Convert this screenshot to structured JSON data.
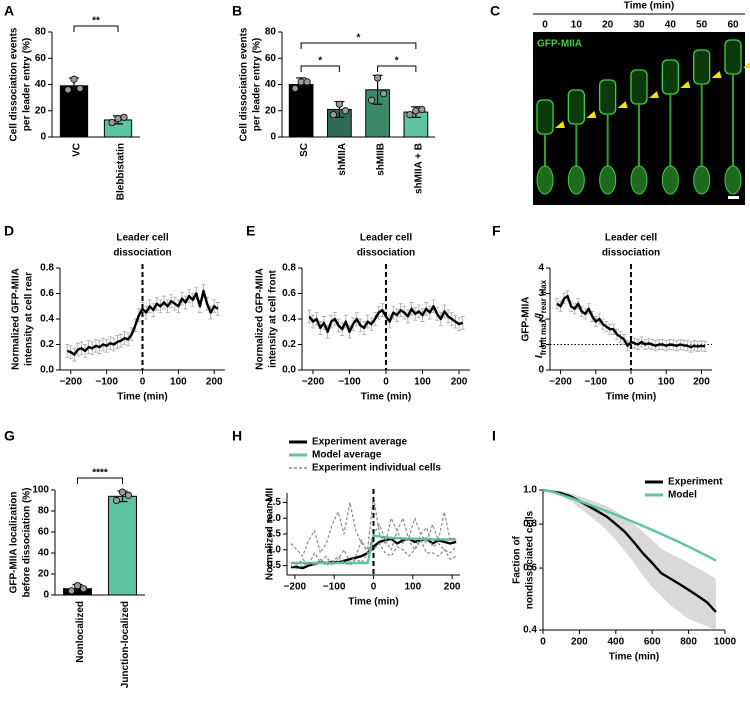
{
  "chart_data": [
    {
      "type": "bar",
      "panel": "A",
      "y_label": [
        "Cell dissociation events",
        "per leader entry (%)"
      ],
      "categories": [
        "VC",
        "Blebbistatin"
      ],
      "values": [
        39,
        13
      ],
      "errors": [
        6,
        3
      ],
      "points": [
        [
          36,
          44,
          37
        ],
        [
          11,
          14,
          15
        ]
      ],
      "colors": [
        "#000000",
        "#5cc4a0"
      ],
      "ylim": [
        0,
        80
      ],
      "yticks": [
        0,
        20,
        40,
        60,
        80
      ],
      "significance": [
        {
          "between": [
            "VC",
            "Blebbistatin"
          ],
          "label": "**"
        }
      ]
    },
    {
      "type": "bar",
      "panel": "B",
      "y_label": [
        "Cell dissociation events",
        "per leader entry (%)"
      ],
      "categories": [
        "SC",
        "shMIIA",
        "shMIIB",
        "shMIIA + B"
      ],
      "values": [
        40,
        21,
        36,
        19
      ],
      "errors": [
        5,
        6,
        11,
        4
      ],
      "points": [
        [
          37,
          42,
          42
        ],
        [
          17,
          25,
          20
        ],
        [
          28,
          45,
          33
        ],
        [
          17,
          20,
          21
        ]
      ],
      "colors": [
        "#000000",
        "#2f6b56",
        "#3d8a6b",
        "#5cc4a0"
      ],
      "ylim": [
        0,
        80
      ],
      "yticks": [
        0,
        20,
        40,
        60,
        80
      ],
      "significance": [
        {
          "between": [
            "SC",
            "shMIIA"
          ],
          "label": "*"
        },
        {
          "between": [
            "SC",
            "shMIIA + B"
          ],
          "label": "*"
        },
        {
          "between": [
            "shMIIB",
            "shMIIA + B"
          ],
          "label": "*"
        }
      ]
    },
    {
      "type": "image",
      "panel": "C",
      "title": "Time (min)",
      "times": [
        0,
        10,
        20,
        30,
        40,
        50,
        60
      ],
      "label": "GFP-MIIA"
    },
    {
      "type": "line",
      "panel": "D",
      "annotation": [
        "Leader cell",
        "dissociation"
      ],
      "marker_x": 0,
      "y_label": [
        "Normalized GFP-MIIA",
        "intensity at cell rear"
      ],
      "x_label": "Time (min)",
      "xlim": [
        -230,
        230
      ],
      "xticks": [
        {
          "value": -200,
          "label": "−200"
        },
        {
          "value": -100,
          "label": "−100"
        },
        0,
        100,
        200
      ],
      "ylim": [
        0,
        0.8
      ],
      "yticks": [
        {
          "value": 0,
          "label": "0.0"
        },
        0.2,
        0.4,
        0.6,
        0.8
      ],
      "x": [
        -210,
        -200,
        -190,
        -180,
        -170,
        -160,
        -150,
        -140,
        -130,
        -120,
        -110,
        -100,
        -90,
        -80,
        -70,
        -60,
        -50,
        -40,
        -30,
        -20,
        -10,
        0,
        10,
        20,
        30,
        40,
        50,
        60,
        70,
        80,
        90,
        100,
        110,
        120,
        130,
        140,
        150,
        160,
        170,
        180,
        190,
        200,
        210
      ],
      "series": [
        {
          "color": "#000000",
          "error": 0.05,
          "values": [
            0.15,
            0.14,
            0.12,
            0.16,
            0.17,
            0.15,
            0.18,
            0.17,
            0.19,
            0.18,
            0.2,
            0.19,
            0.21,
            0.2,
            0.22,
            0.23,
            0.25,
            0.24,
            0.28,
            0.35,
            0.43,
            0.48,
            0.45,
            0.5,
            0.47,
            0.52,
            0.5,
            0.53,
            0.5,
            0.54,
            0.52,
            0.5,
            0.56,
            0.53,
            0.58,
            0.55,
            0.6,
            0.5,
            0.62,
            0.52,
            0.45,
            0.5,
            0.48
          ]
        }
      ]
    },
    {
      "type": "line",
      "panel": "E",
      "annotation": [
        "Leader cell",
        "dissociation"
      ],
      "marker_x": 0,
      "y_label": [
        "Normalized GFP-MIIA",
        "intensity at cell front"
      ],
      "x_label": "Time (min)",
      "xlim": [
        -230,
        230
      ],
      "xticks": [
        {
          "value": -200,
          "label": "−200"
        },
        {
          "value": -100,
          "label": "−100"
        },
        0,
        100,
        200
      ],
      "ylim": [
        0,
        0.8
      ],
      "yticks": [
        {
          "value": 0,
          "label": "0.0"
        },
        0.2,
        0.4,
        0.6,
        0.8
      ],
      "x": [
        -210,
        -200,
        -190,
        -180,
        -170,
        -160,
        -150,
        -140,
        -130,
        -120,
        -110,
        -100,
        -90,
        -80,
        -70,
        -60,
        -50,
        -40,
        -30,
        -20,
        -10,
        0,
        10,
        20,
        30,
        40,
        50,
        60,
        70,
        80,
        90,
        100,
        110,
        120,
        130,
        140,
        150,
        160,
        170,
        180,
        190,
        200,
        210
      ],
      "series": [
        {
          "color": "#000000",
          "error": 0.05,
          "values": [
            0.42,
            0.38,
            0.4,
            0.33,
            0.37,
            0.3,
            0.38,
            0.4,
            0.35,
            0.32,
            0.38,
            0.3,
            0.36,
            0.4,
            0.35,
            0.33,
            0.38,
            0.36,
            0.4,
            0.45,
            0.47,
            0.42,
            0.38,
            0.45,
            0.43,
            0.47,
            0.45,
            0.42,
            0.48,
            0.44,
            0.46,
            0.43,
            0.48,
            0.45,
            0.5,
            0.44,
            0.4,
            0.46,
            0.42,
            0.4,
            0.38,
            0.36,
            0.37
          ]
        }
      ]
    },
    {
      "type": "line",
      "panel": "F",
      "annotation": [
        "Leader cell",
        "dissociation"
      ],
      "marker_x": 0,
      "reference_y": 1,
      "y_label": [
        "GFP-MIIA"
      ],
      "y_label_2": [
        {
          "text": "I"
        },
        {
          "text": "front max",
          "sub": true
        },
        {
          "text": "/I"
        },
        {
          "text": "rear max",
          "sub": true
        }
      ],
      "x_label": "Time (min)",
      "xlim": [
        -230,
        230
      ],
      "xticks": [
        {
          "value": -200,
          "label": "−200"
        },
        {
          "value": -100,
          "label": "−100"
        },
        0,
        100,
        200
      ],
      "ylim": [
        0,
        4
      ],
      "yticks": [
        0,
        1,
        2,
        3,
        4
      ],
      "x": [
        -210,
        -200,
        -190,
        -180,
        -170,
        -160,
        -150,
        -140,
        -130,
        -120,
        -110,
        -100,
        -90,
        -80,
        -70,
        -60,
        -50,
        -40,
        -30,
        -20,
        -10,
        0,
        10,
        20,
        30,
        40,
        50,
        60,
        70,
        80,
        90,
        100,
        110,
        120,
        130,
        140,
        150,
        160,
        170,
        180,
        190,
        200,
        210
      ],
      "series": [
        {
          "color": "#000000",
          "error": 0.2,
          "values": [
            2.6,
            2.5,
            2.8,
            2.9,
            2.5,
            2.4,
            2.6,
            2.3,
            2.2,
            2.4,
            2.1,
            1.9,
            2.0,
            1.8,
            1.7,
            1.6,
            1.6,
            1.4,
            1.3,
            1.2,
            0.95,
            1.1,
            1.05,
            1.0,
            1.1,
            1.0,
            1.05,
            1.0,
            0.95,
            1.0,
            1.0,
            0.95,
            1.0,
            0.98,
            0.95,
            1.0,
            0.97,
            0.95,
            0.9,
            0.95,
            0.92,
            0.95,
            0.93
          ]
        }
      ]
    },
    {
      "type": "bar",
      "panel": "G",
      "y_label": [
        "GFP-MIIA localization",
        "before dissociation (%)"
      ],
      "categories": [
        "Nonlocalized",
        "Junction-localized"
      ],
      "values": [
        6,
        94
      ],
      "errors": [
        4,
        5
      ],
      "points": [
        [
          4,
          9,
          6
        ],
        [
          90,
          98,
          95
        ]
      ],
      "colors": [
        "#000000",
        "#5cc4a0"
      ],
      "ylim": [
        0,
        100
      ],
      "yticks": [
        0,
        20,
        40,
        60,
        80,
        100
      ],
      "significance": [
        {
          "between": [
            "Nonlocalized",
            "Junction-localized"
          ],
          "label": "****"
        }
      ]
    },
    {
      "type": "line",
      "panel": "H",
      "marker_x": 0,
      "legend": "above",
      "y_label": [
        "Normalized rear MII"
      ],
      "x_label": "Time (min)",
      "xlim": [
        -220,
        220
      ],
      "xticks": [
        {
          "value": -200,
          "label": "−200"
        },
        {
          "value": -100,
          "label": "−100"
        },
        0,
        100,
        200
      ],
      "ylim": [
        0.2,
        2.8
      ],
      "yticks": [
        0.5,
        {
          "value": 1,
          "label": "1.0"
        },
        1.5,
        {
          "value": 2,
          "label": "2.0"
        },
        2.5
      ],
      "x": [
        -210,
        -195,
        -180,
        -165,
        -150,
        -135,
        -120,
        -105,
        -90,
        -75,
        -60,
        -45,
        -30,
        -15,
        0,
        15,
        30,
        45,
        60,
        75,
        90,
        105,
        120,
        135,
        150,
        165,
        180,
        195,
        210
      ],
      "series": [
        {
          "name": "Experiment average",
          "color": "#000000",
          "values": [
            0.45,
            0.45,
            0.42,
            0.5,
            0.55,
            0.6,
            0.58,
            0.62,
            0.6,
            0.65,
            0.7,
            0.75,
            0.8,
            0.9,
            1.1,
            1.25,
            1.3,
            1.35,
            1.2,
            1.3,
            1.35,
            1.25,
            1.3,
            1.35,
            1.2,
            1.3,
            1.25,
            1.2,
            1.25
          ]
        },
        {
          "name": "Model average",
          "color": "#5cc4a0",
          "values": [
            0.58,
            0.58,
            0.58,
            0.58,
            0.58,
            0.58,
            0.58,
            0.58,
            0.58,
            0.58,
            0.58,
            0.58,
            0.58,
            0.58,
            1.45,
            1.42,
            1.4,
            1.38,
            1.37,
            1.36,
            1.35,
            1.35,
            1.34,
            1.34,
            1.33,
            1.33,
            1.33,
            1.33,
            1.33
          ]
        },
        {
          "name": "Experiment individual cells",
          "color": "#8a8a8a",
          "dash": true,
          "traces": [
            [
              1.2,
              1.0,
              0.8,
              1.3,
              1.6,
              0.9,
              1.2,
              1.8,
              2.2,
              1.5,
              2.5,
              1.6,
              1.2,
              1.0,
              2.7,
              1.5,
              1.2,
              2.0,
              1.6,
              1.2,
              1.4,
              2.0,
              1.5,
              1.2,
              1.8,
              1.3,
              2.2,
              1.3,
              1.4
            ],
            [
              0.6,
              0.5,
              0.7,
              0.5,
              0.9,
              0.6,
              0.8,
              0.5,
              0.7,
              1.0,
              0.6,
              0.8,
              1.3,
              0.9,
              1.5,
              1.8,
              1.3,
              1.0,
              1.6,
              2.0,
              1.3,
              1.0,
              1.5,
              1.7,
              1.1,
              1.2,
              1.0,
              0.9,
              1.1
            ],
            [
              0.5,
              0.4,
              0.5,
              0.6,
              0.5,
              0.7,
              0.5,
              0.6,
              0.8,
              0.6,
              0.5,
              0.7,
              0.6,
              0.9,
              1.0,
              1.2,
              0.9,
              0.8,
              1.1,
              1.0,
              0.8,
              1.0,
              1.3,
              0.9,
              0.9,
              0.8,
              1.0,
              0.7,
              0.8
            ]
          ]
        }
      ]
    },
    {
      "type": "line",
      "panel": "I",
      "legend": "top-right",
      "log_y": true,
      "y_label": [
        "Faction of",
        "nondissociated cells"
      ],
      "x_label": "Time (min)",
      "xlim": [
        0,
        1000
      ],
      "xticks": [
        0,
        200,
        400,
        600,
        800,
        1000
      ],
      "ylim": [
        0.4,
        1
      ],
      "yticks": [
        {
          "value": 1,
          "label": "1.0"
        },
        0.8,
        0.6,
        0.4
      ],
      "x": [
        0,
        50,
        100,
        150,
        200,
        250,
        300,
        350,
        400,
        450,
        500,
        550,
        600,
        650,
        700,
        750,
        800,
        850,
        900,
        950
      ],
      "series": [
        {
          "name": "Experiment",
          "color": "#000000",
          "values": [
            1.0,
            0.99,
            0.98,
            0.96,
            0.93,
            0.9,
            0.87,
            0.84,
            0.8,
            0.76,
            0.71,
            0.66,
            0.62,
            0.58,
            0.56,
            0.54,
            0.52,
            0.5,
            0.48,
            0.45
          ],
          "lower": [
            1.0,
            0.98,
            0.96,
            0.93,
            0.89,
            0.85,
            0.81,
            0.77,
            0.72,
            0.67,
            0.62,
            0.57,
            0.53,
            0.5,
            0.47,
            0.45,
            0.43,
            0.42,
            0.41,
            0.4
          ],
          "upper": [
            1.0,
            1.0,
            0.99,
            0.98,
            0.96,
            0.94,
            0.92,
            0.9,
            0.87,
            0.84,
            0.8,
            0.76,
            0.72,
            0.68,
            0.66,
            0.64,
            0.62,
            0.6,
            0.58,
            0.56
          ]
        },
        {
          "name": "Model",
          "color": "#5cc4a0",
          "values": [
            1.0,
            0.99,
            0.97,
            0.95,
            0.93,
            0.91,
            0.89,
            0.87,
            0.85,
            0.83,
            0.81,
            0.79,
            0.77,
            0.75,
            0.73,
            0.71,
            0.69,
            0.67,
            0.65,
            0.63
          ]
        }
      ]
    }
  ]
}
